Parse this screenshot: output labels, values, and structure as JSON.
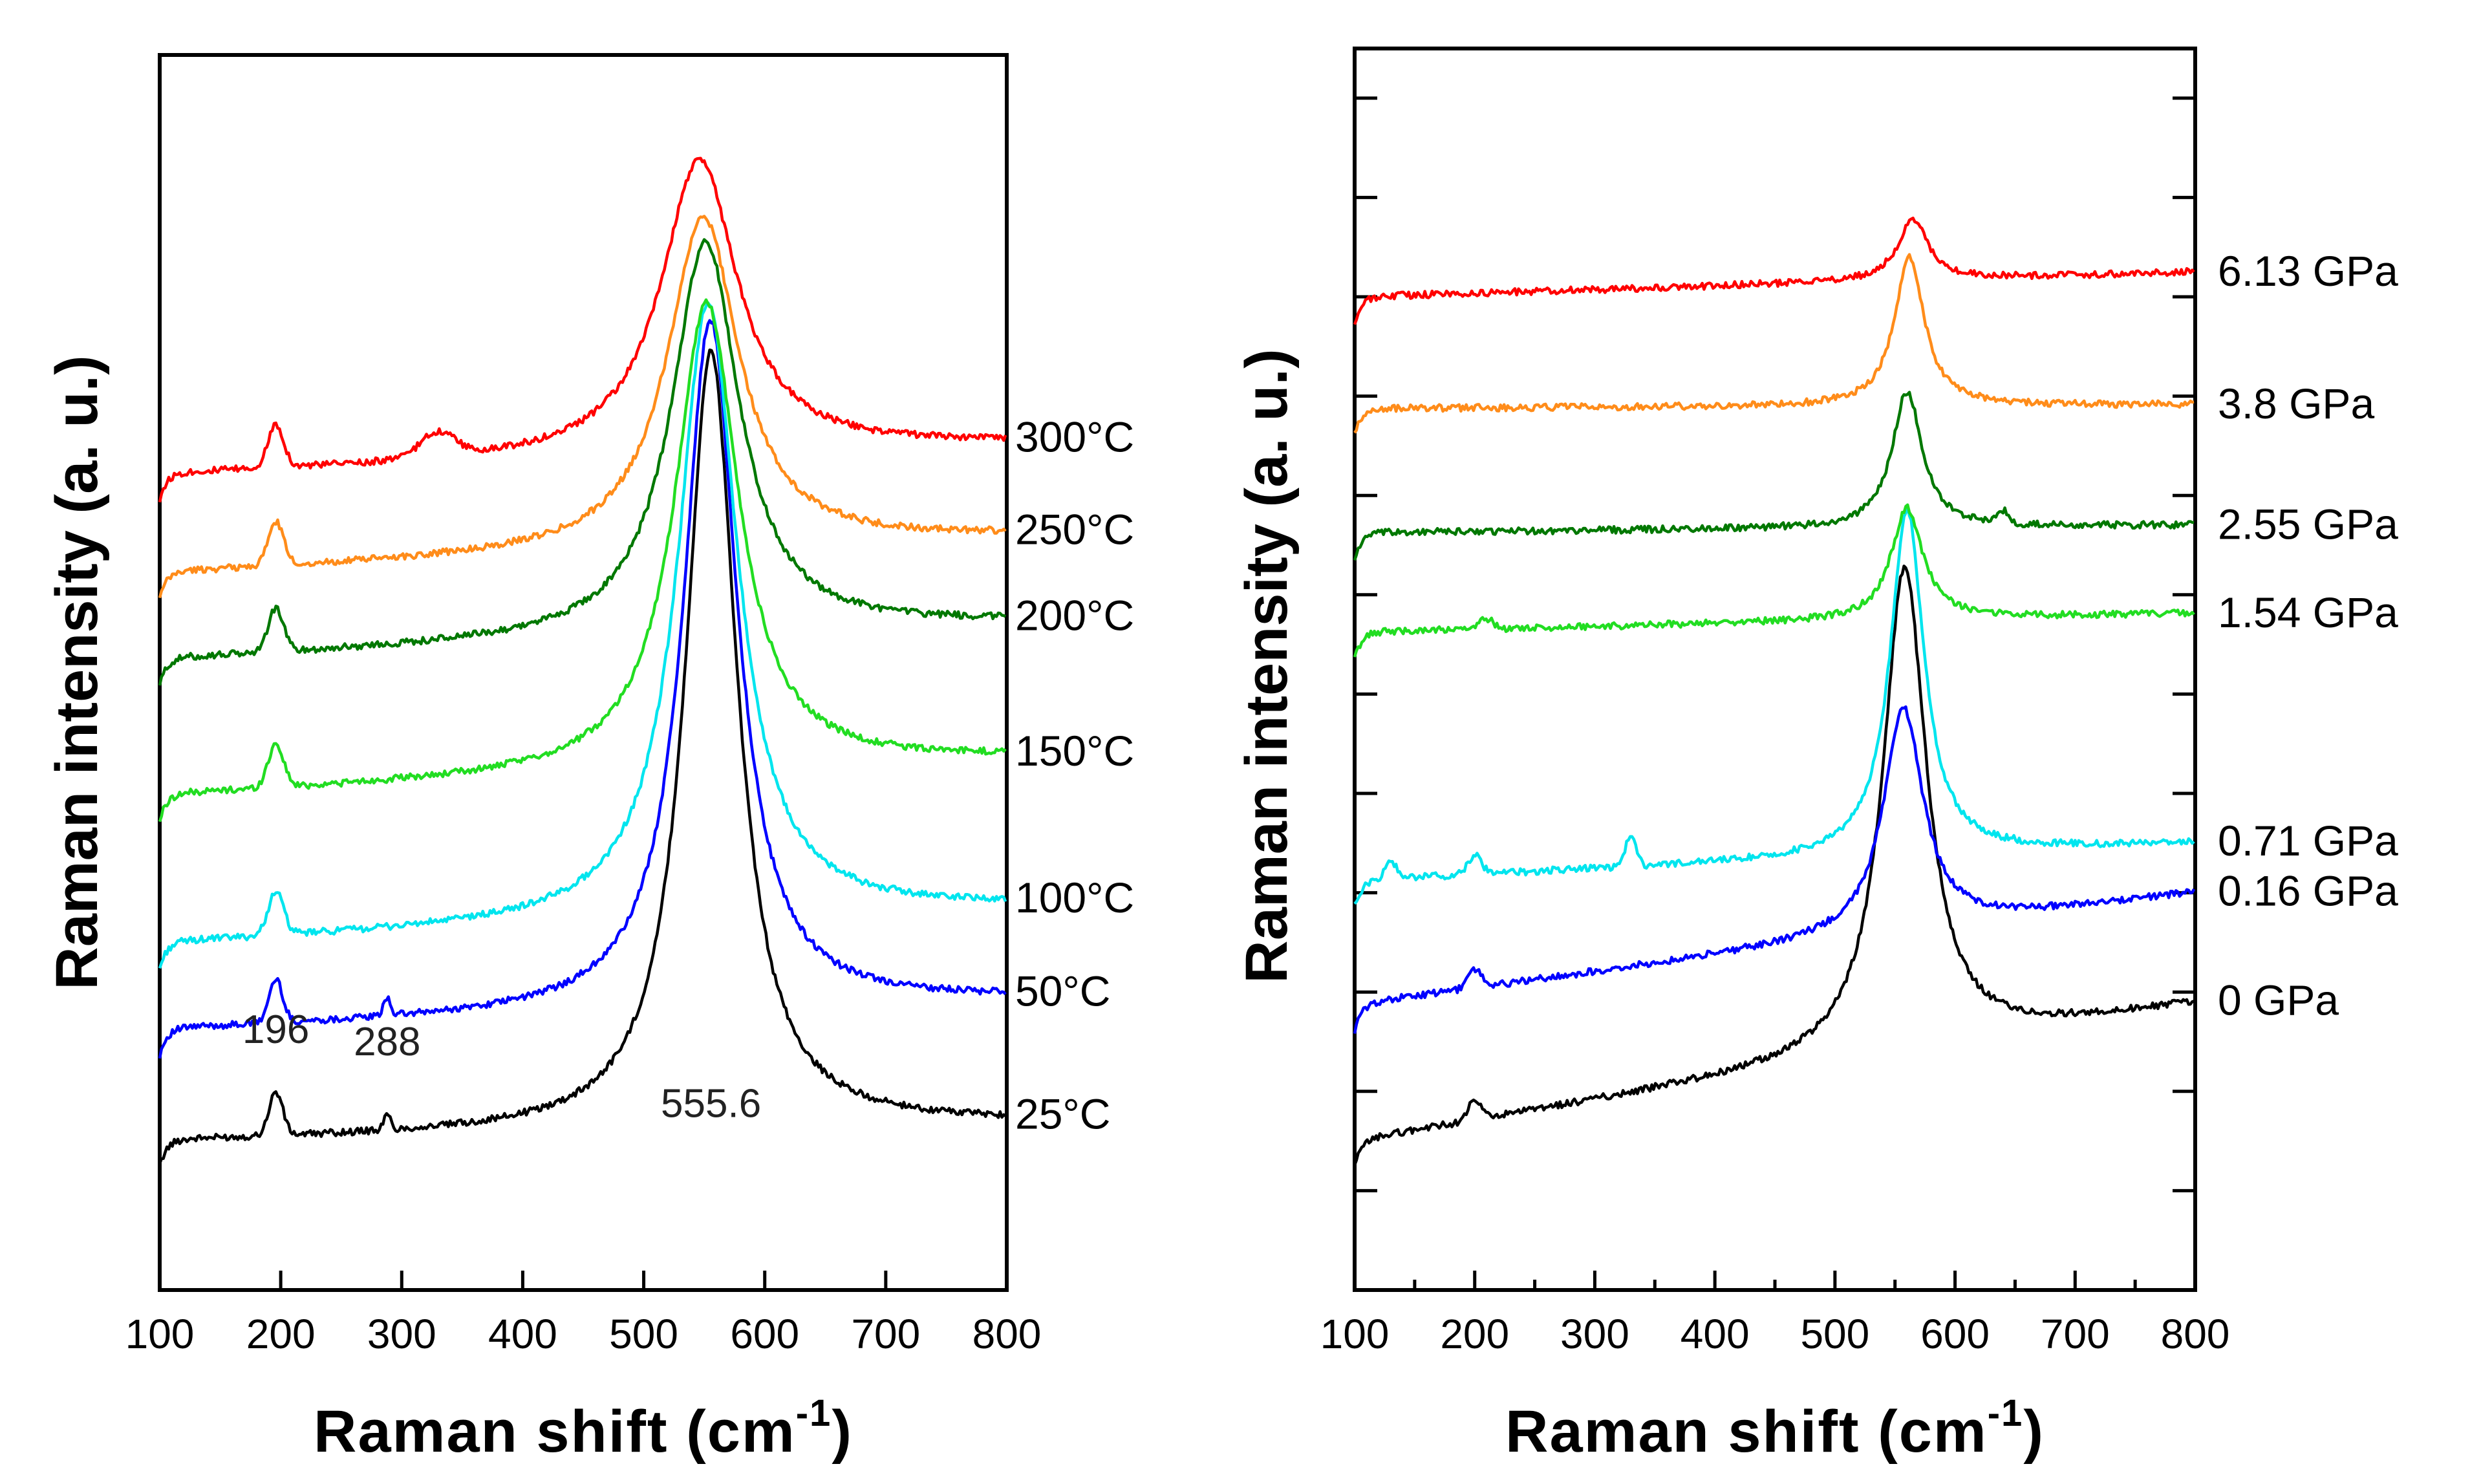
{
  "chart_data": [
    {
      "type": "line",
      "panel": "left",
      "title": "",
      "xlabel": "Raman shift (cm",
      "xlabel_sup": "-1",
      "xlabel_close": ")",
      "ylabel": "Raman intensity (a. u.)",
      "xlim": [
        100,
        800
      ],
      "ylim": [
        0,
        100
      ],
      "xticks": [
        100,
        200,
        300,
        400,
        500,
        600,
        700,
        800
      ],
      "grid": false,
      "annotations": [
        {
          "text": "196",
          "x": 196,
          "y": 20
        },
        {
          "text": "288",
          "x": 288,
          "y": 19
        },
        {
          "text": "555.6",
          "x": 555.6,
          "y": 14
        }
      ],
      "series": [
        {
          "name": "25°C",
          "color": "#000000",
          "peak_x": 555.6,
          "width": 26,
          "baseline": 12,
          "slope": 1.5,
          "peak_height": 63,
          "small_peaks": [
            [
              196,
              3.5,
              8
            ],
            [
              288,
              1.2,
              4
            ]
          ]
        },
        {
          "name": "50°C",
          "color": "#0000ff",
          "peak_x": 555,
          "width": 27,
          "baseline": 21,
          "slope": 2.5,
          "peak_height": 56,
          "small_peaks": [
            [
              196,
              3.5,
              8
            ],
            [
              288,
              1.5,
              4
            ]
          ]
        },
        {
          "name": "100°C",
          "color": "#00e5ee",
          "peak_x": 553,
          "width": 30,
          "baseline": 28,
          "slope": 3,
          "peak_height": 50,
          "small_peaks": [
            [
              196,
              3.5,
              9
            ]
          ]
        },
        {
          "name": "150°C",
          "color": "#22dd22",
          "peak_x": 552,
          "width": 32,
          "baseline": 40,
          "slope": 3,
          "peak_height": 38,
          "small_peaks": [
            [
              196,
              3.5,
              9
            ]
          ]
        },
        {
          "name": "200°C",
          "color": "#007800",
          "peak_x": 551,
          "width": 34,
          "baseline": 51,
          "slope": 3,
          "peak_height": 32,
          "small_peaks": [
            [
              196,
              3.5,
              9
            ]
          ]
        },
        {
          "name": "250°C",
          "color": "#ff8c1a",
          "peak_x": 549,
          "width": 36,
          "baseline": 58,
          "slope": 3,
          "peak_height": 27,
          "small_peaks": [
            [
              196,
              3.5,
              9
            ]
          ]
        },
        {
          "name": "300°C",
          "color": "#ff0000",
          "peak_x": 546,
          "width": 38,
          "baseline": 66,
          "slope": 2.5,
          "peak_height": 24,
          "small_peaks": [
            [
              196,
              3.5,
              9
            ],
            [
              330,
              2,
              20
            ]
          ]
        }
      ]
    },
    {
      "type": "line",
      "panel": "right",
      "title": "",
      "xlabel": "Raman shift (cm",
      "xlabel_sup": "-1",
      "xlabel_close": ")",
      "ylabel": "Raman intensity (a. u.)",
      "xlim": [
        100,
        800
      ],
      "ylim": [
        0,
        100
      ],
      "xticks": [
        100,
        200,
        300,
        400,
        500,
        600,
        700,
        800
      ],
      "grid": false,
      "annotations": [],
      "series": [
        {
          "name": "0 GPa",
          "color": "#000000",
          "peak_x": 558,
          "width": 22,
          "baseline": 12,
          "slope": 11,
          "peak_height": 39,
          "small_peaks": [
            [
              200,
              1.5,
              8
            ]
          ]
        },
        {
          "name": "0.16 GPa",
          "color": "#0000ff",
          "peak_x": 557,
          "width": 20,
          "baseline": 23,
          "slope": 9,
          "peak_height": 18,
          "small_peaks": [
            [
              200,
              1.5,
              8
            ]
          ]
        },
        {
          "name": "0.71 GPa",
          "color": "#00e5ee",
          "peak_x": 560,
          "width": 17,
          "baseline": 33,
          "slope": 3,
          "peak_height": 28,
          "small_peaks": [
            [
              130,
              1.5,
              6
            ],
            [
              200,
              1.5,
              8
            ],
            [
              330,
              2.5,
              6
            ]
          ]
        },
        {
          "name": "1.54 GPa",
          "color": "#22dd22",
          "peak_x": 560,
          "width": 16,
          "baseline": 53,
          "slope": 1.5,
          "peak_height": 9,
          "small_peaks": [
            [
              210,
              0.8,
              8
            ]
          ]
        },
        {
          "name": "2.55 GPa",
          "color": "#007800",
          "peak_x": 560,
          "width": 15,
          "baseline": 61,
          "slope": 0.6,
          "peak_height": 11,
          "small_peaks": [
            [
              640,
              1,
              6
            ]
          ]
        },
        {
          "name": "3.8 GPa",
          "color": "#ff8c1a",
          "peak_x": 562,
          "width": 15,
          "baseline": 71,
          "slope": 0.3,
          "peak_height": 12,
          "small_peaks": []
        },
        {
          "name": "6.13 GPa",
          "color": "#ff0000",
          "peak_x": 565,
          "width": 15,
          "baseline": 80,
          "slope": 2,
          "peak_height": 5,
          "small_peaks": []
        }
      ]
    }
  ]
}
